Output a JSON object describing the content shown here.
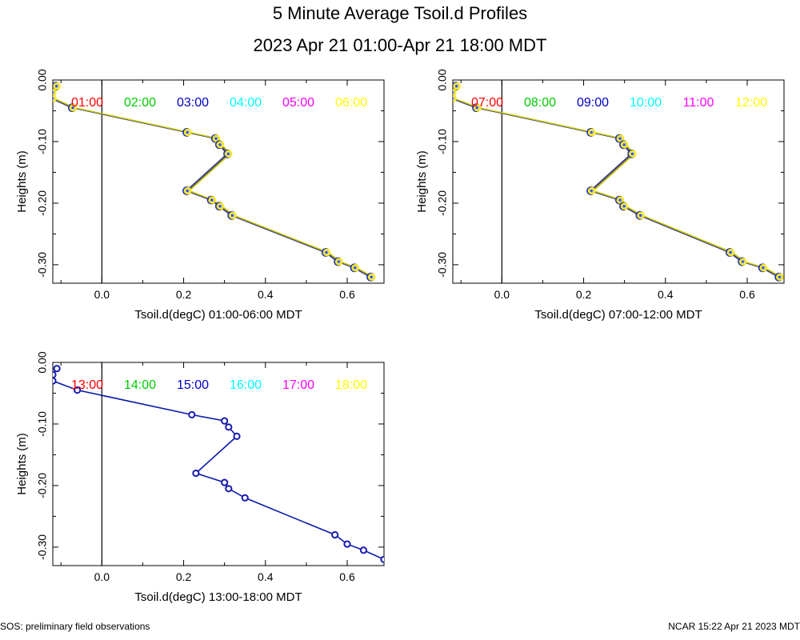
{
  "title": "5 Minute Average Tsoil.d Profiles",
  "subtitle": "2023 Apr 21 01:00-Apr 21 18:00 MDT",
  "footer": {
    "left": "SOS: preliminary field observations",
    "right": "NCAR 15:22 Apr 21 2023 MDT"
  },
  "chart_data": [
    {
      "type": "line",
      "xlabel": "Tsoil.d(degC) 01:00-06:00 MDT",
      "ylabel": "Heights (m)",
      "xlim": [
        -0.12,
        0.69
      ],
      "ylim": [
        -0.33,
        0.0
      ],
      "xticks": [
        "0.0",
        "0.2",
        "0.4",
        "0.6"
      ],
      "yticks": [
        "0.00",
        "-0.10",
        "-0.20",
        "-0.30"
      ],
      "series": [
        {
          "name": "01:00",
          "color": "#ff0000"
        },
        {
          "name": "02:00",
          "color": "#00cc00"
        },
        {
          "name": "03:00",
          "color": "#0000cc"
        },
        {
          "name": "04:00",
          "color": "#00ffff"
        },
        {
          "name": "05:00",
          "color": "#ff00ff"
        },
        {
          "name": "06:00",
          "color": "#ffff00"
        }
      ],
      "x": [
        -0.11,
        -0.12,
        -0.12,
        -0.07,
        0.21,
        0.28,
        0.29,
        0.31,
        0.21,
        0.27,
        0.29,
        0.32,
        0.55,
        0.58,
        0.62,
        0.66
      ],
      "y": [
        -0.01,
        -0.02,
        -0.03,
        -0.045,
        -0.085,
        -0.095,
        -0.105,
        -0.12,
        -0.18,
        -0.195,
        -0.205,
        -0.22,
        -0.28,
        -0.295,
        -0.305,
        -0.32
      ]
    },
    {
      "type": "line",
      "xlabel": "Tsoil.d(degC) 07:00-12:00 MDT",
      "ylabel": "Heights (m)",
      "xlim": [
        -0.12,
        0.69
      ],
      "ylim": [
        -0.33,
        0.0
      ],
      "xticks": [
        "0.0",
        "0.2",
        "0.4",
        "0.6"
      ],
      "yticks": [
        "0.00",
        "-0.10",
        "-0.20",
        "-0.30"
      ],
      "series": [
        {
          "name": "07:00",
          "color": "#ff0000"
        },
        {
          "name": "08:00",
          "color": "#00cc00"
        },
        {
          "name": "09:00",
          "color": "#0000cc"
        },
        {
          "name": "10:00",
          "color": "#00ffff"
        },
        {
          "name": "11:00",
          "color": "#ff00ff"
        },
        {
          "name": "12:00",
          "color": "#ffff00"
        }
      ],
      "x": [
        -0.11,
        -0.12,
        -0.12,
        -0.06,
        0.22,
        0.29,
        0.3,
        0.32,
        0.22,
        0.29,
        0.3,
        0.34,
        0.56,
        0.59,
        0.64,
        0.68
      ],
      "y": [
        -0.01,
        -0.02,
        -0.03,
        -0.045,
        -0.085,
        -0.095,
        -0.105,
        -0.12,
        -0.18,
        -0.195,
        -0.205,
        -0.22,
        -0.28,
        -0.295,
        -0.305,
        -0.32
      ]
    },
    {
      "type": "line",
      "xlabel": "Tsoil.d(degC) 13:00-18:00 MDT",
      "ylabel": "Heights (m)",
      "xlim": [
        -0.12,
        0.69
      ],
      "ylim": [
        -0.33,
        0.0
      ],
      "xticks": [
        "0.0",
        "0.2",
        "0.4",
        "0.6"
      ],
      "yticks": [
        "0.00",
        "-0.10",
        "-0.20",
        "-0.30"
      ],
      "series": [
        {
          "name": "13:00",
          "color": "#ff0000"
        },
        {
          "name": "14:00",
          "color": "#00cc00"
        },
        {
          "name": "15:00",
          "color": "#0000cc"
        },
        {
          "name": "16:00",
          "color": "#00ffff"
        },
        {
          "name": "17:00",
          "color": "#ff00ff"
        },
        {
          "name": "18:00",
          "color": "#ffff00"
        }
      ],
      "x": [
        -0.11,
        -0.12,
        -0.12,
        -0.06,
        0.22,
        0.3,
        0.31,
        0.33,
        0.23,
        0.3,
        0.31,
        0.35,
        0.57,
        0.6,
        0.64,
        0.69
      ],
      "y": [
        -0.01,
        -0.02,
        -0.03,
        -0.045,
        -0.085,
        -0.095,
        -0.105,
        -0.12,
        -0.18,
        -0.195,
        -0.205,
        -0.22,
        -0.28,
        -0.295,
        -0.305,
        -0.32
      ]
    }
  ]
}
